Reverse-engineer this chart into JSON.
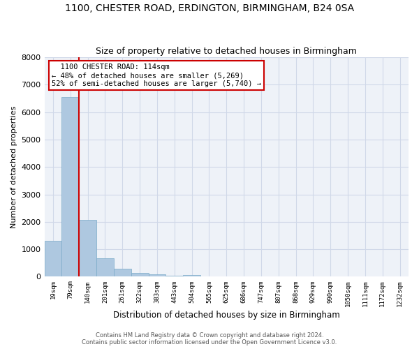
{
  "title": "1100, CHESTER ROAD, ERDINGTON, BIRMINGHAM, B24 0SA",
  "subtitle": "Size of property relative to detached houses in Birmingham",
  "xlabel": "Distribution of detached houses by size in Birmingham",
  "ylabel": "Number of detached properties",
  "footer_line1": "Contains HM Land Registry data © Crown copyright and database right 2024.",
  "footer_line2": "Contains public sector information licensed under the Open Government Licence v3.0.",
  "bar_labels": [
    "19sqm",
    "79sqm",
    "140sqm",
    "201sqm",
    "261sqm",
    "322sqm",
    "383sqm",
    "443sqm",
    "504sqm",
    "565sqm",
    "625sqm",
    "686sqm",
    "747sqm",
    "807sqm",
    "868sqm",
    "929sqm",
    "990sqm",
    "1050sqm",
    "1111sqm",
    "1172sqm",
    "1232sqm"
  ],
  "bar_values": [
    1300,
    6550,
    2080,
    680,
    280,
    130,
    80,
    40,
    60,
    0,
    0,
    0,
    0,
    0,
    0,
    0,
    0,
    0,
    0,
    0,
    0
  ],
  "bar_color": "#aec8e0",
  "bar_edge_color": "#7aaac8",
  "ylim": [
    0,
    8000
  ],
  "yticks": [
    0,
    1000,
    2000,
    3000,
    4000,
    5000,
    6000,
    7000,
    8000
  ],
  "property_label": "1100 CHESTER ROAD: 114sqm",
  "pct_smaller": 48,
  "n_smaller": 5269,
  "pct_larger": 52,
  "n_larger": 5740,
  "annotation_box_color": "#cc0000",
  "vline_color": "#cc0000",
  "vline_x_index": 1.5,
  "grid_color": "#d0d8e8",
  "ax_background": "#eef2f8"
}
